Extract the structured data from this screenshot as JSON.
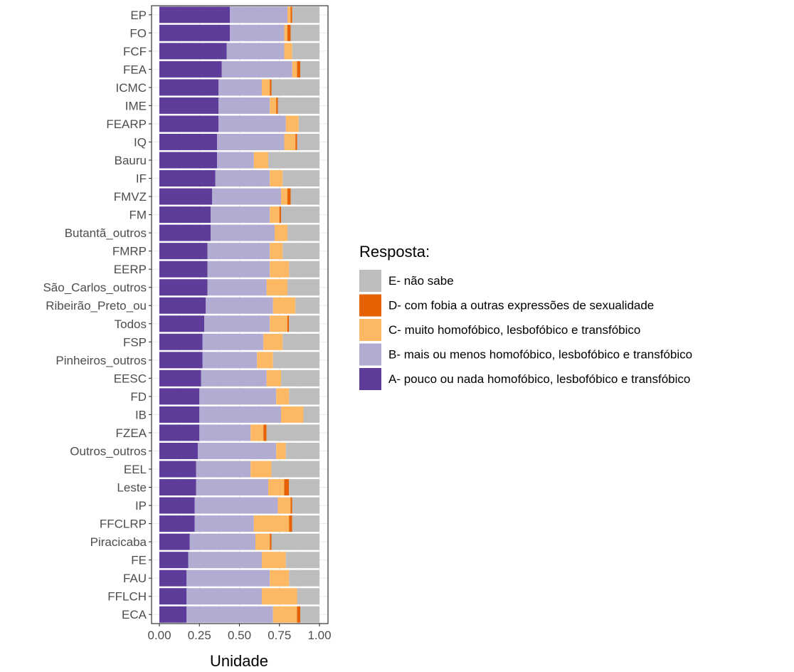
{
  "chart_data": {
    "type": "bar",
    "orientation": "horizontal",
    "stacked": true,
    "xlabel": "Unidade",
    "ylabel": "",
    "xlim": [
      0,
      1
    ],
    "x_ticks": [
      "0.00",
      "0.25",
      "0.50",
      "0.75",
      "1.00"
    ],
    "legend": {
      "title": "Resposta:",
      "placement": "right",
      "entries": [
        "E- não sabe",
        "D- com fobia a outras expressões de sexualidade",
        "C- muito homofóbico, lesbofóbico e transfóbico",
        "B- mais ou menos homofóbico, lesbofóbico e transfóbico",
        "A- pouco ou nada homofóbico, lesbofóbico e transfóbico"
      ]
    },
    "grid": true,
    "categories": [
      "EP",
      "FO",
      "FCF",
      "FEA",
      "ICMC",
      "IME",
      "FEARP",
      "IQ",
      "Bauru",
      "IF",
      "FMVZ",
      "FM",
      "Butantã_outros",
      "FMRP",
      "EERP",
      "São_Carlos_outros",
      "Ribeirão_Preto_ou",
      "Todos",
      "FSP",
      "Pinheiros_outros",
      "EESC",
      "FD",
      "IB",
      "FZEA",
      "Outros_outros",
      "EEL",
      "Leste",
      "IP",
      "FFCLRP",
      "Piracicaba",
      "FE",
      "FAU",
      "FFLCH",
      "ECA"
    ],
    "series": [
      {
        "name": "A- pouco ou nada homofóbico, lesbofóbico e transfóbico",
        "color": "#5e3c99",
        "values": [
          0.44,
          0.44,
          0.42,
          0.39,
          0.37,
          0.37,
          0.37,
          0.36,
          0.36,
          0.35,
          0.33,
          0.32,
          0.32,
          0.3,
          0.3,
          0.3,
          0.29,
          0.28,
          0.27,
          0.27,
          0.26,
          0.25,
          0.25,
          0.25,
          0.24,
          0.23,
          0.23,
          0.22,
          0.22,
          0.19,
          0.18,
          0.17,
          0.17,
          0.17
        ]
      },
      {
        "name": "B- mais ou menos homofóbico, lesbofóbico e transfóbico",
        "color": "#b2abd2",
        "values": [
          0.36,
          0.34,
          0.36,
          0.44,
          0.27,
          0.32,
          0.42,
          0.42,
          0.23,
          0.34,
          0.43,
          0.37,
          0.4,
          0.39,
          0.39,
          0.37,
          0.42,
          0.41,
          0.38,
          0.34,
          0.41,
          0.48,
          0.51,
          0.32,
          0.49,
          0.34,
          0.45,
          0.52,
          0.37,
          0.41,
          0.46,
          0.52,
          0.47,
          0.54
        ]
      },
      {
        "name": "C- muito homofóbico, lesbofóbico e transfóbico",
        "color": "#fdb863",
        "values": [
          0.02,
          0.02,
          0.05,
          0.03,
          0.05,
          0.04,
          0.08,
          0.07,
          0.09,
          0.08,
          0.04,
          0.06,
          0.08,
          0.08,
          0.12,
          0.13,
          0.14,
          0.11,
          0.12,
          0.1,
          0.09,
          0.08,
          0.14,
          0.08,
          0.06,
          0.13,
          0.1,
          0.08,
          0.22,
          0.09,
          0.15,
          0.12,
          0.22,
          0.15
        ]
      },
      {
        "name": "D- com fobia a outras expressões de sexualidade",
        "color": "#e66101",
        "values": [
          0.01,
          0.02,
          0.0,
          0.02,
          0.01,
          0.01,
          0.0,
          0.01,
          0.0,
          0.0,
          0.02,
          0.01,
          0.0,
          0.0,
          0.0,
          0.0,
          0.0,
          0.01,
          0.0,
          0.0,
          0.0,
          0.0,
          0.0,
          0.02,
          0.0,
          0.0,
          0.03,
          0.01,
          0.02,
          0.01,
          0.0,
          0.0,
          0.0,
          0.02
        ]
      },
      {
        "name": "E- não sabe",
        "color": "#bdbdbd",
        "values": [
          0.17,
          0.18,
          0.17,
          0.12,
          0.3,
          0.26,
          0.13,
          0.14,
          0.32,
          0.23,
          0.18,
          0.24,
          0.2,
          0.23,
          0.19,
          0.2,
          0.15,
          0.19,
          0.23,
          0.29,
          0.24,
          0.19,
          0.1,
          0.33,
          0.21,
          0.3,
          0.19,
          0.17,
          0.17,
          0.3,
          0.21,
          0.19,
          0.14,
          0.12
        ]
      }
    ]
  }
}
